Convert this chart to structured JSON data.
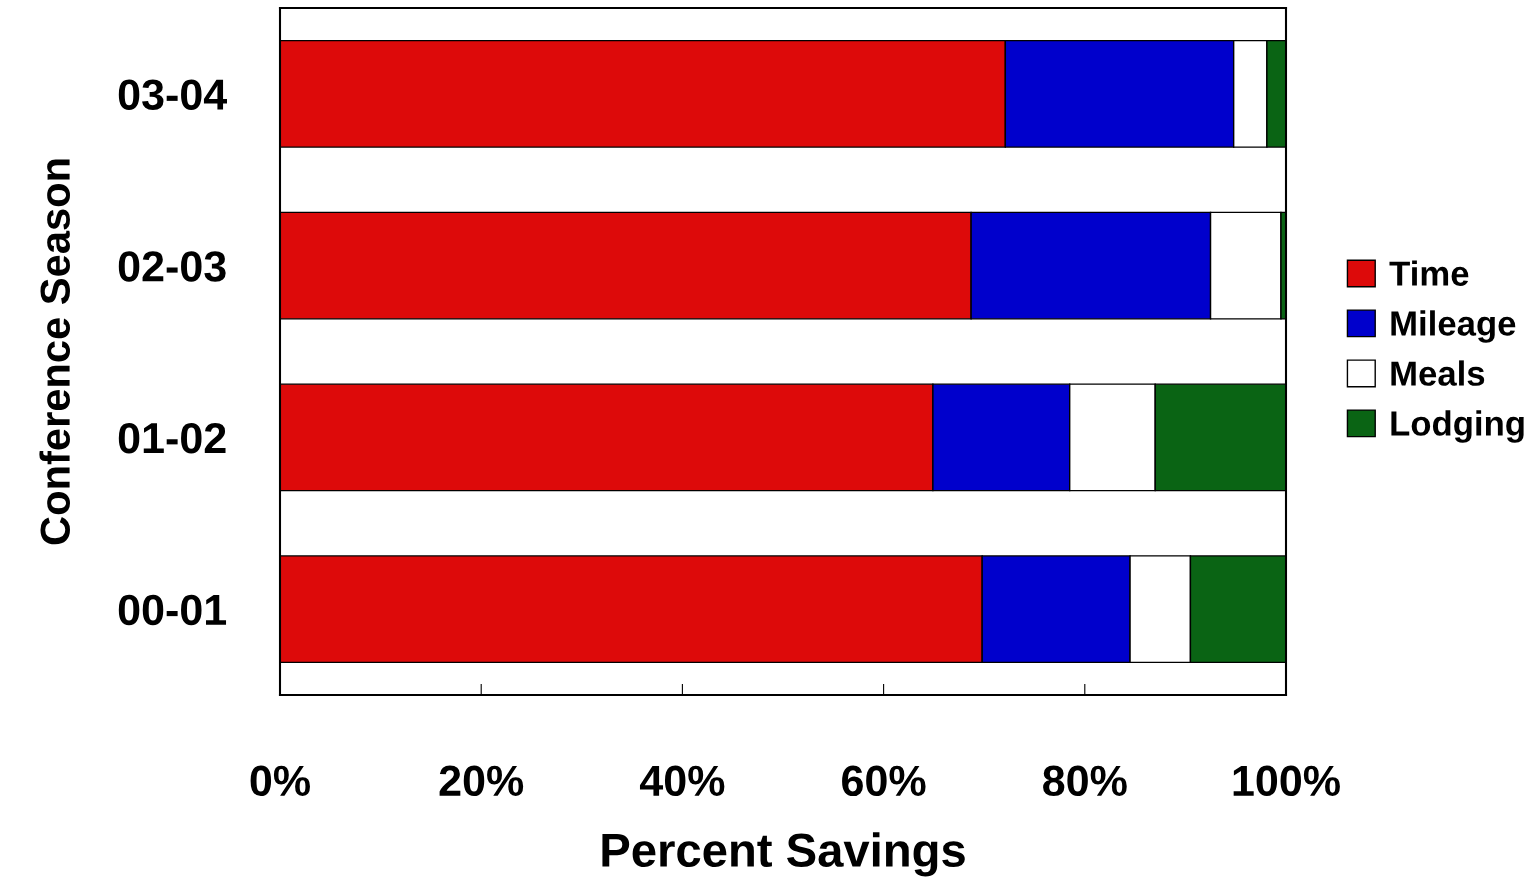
{
  "chart_data": {
    "type": "bar",
    "orientation": "horizontal",
    "stacked": true,
    "xlabel": "Percent Savings",
    "ylabel": "Conference Season",
    "categories": [
      "03-04",
      "02-03",
      "01-02",
      "00-01"
    ],
    "series": [
      {
        "name": "Time",
        "color": "#dd0a0a",
        "values": [
          72.1,
          68.7,
          64.9,
          69.8
        ]
      },
      {
        "name": "Mileage",
        "color": "#0000cc",
        "values": [
          22.7,
          23.8,
          13.6,
          14.7
        ]
      },
      {
        "name": "Meals",
        "color": "#ffffff",
        "values": [
          3.3,
          7.0,
          8.5,
          6.0
        ]
      },
      {
        "name": "Lodging",
        "color": "#0a6414",
        "values": [
          1.9,
          0.5,
          13.0,
          9.5
        ]
      }
    ],
    "xlim": [
      0,
      100
    ],
    "xticks": [
      {
        "value": 0,
        "label": "0%"
      },
      {
        "value": 20,
        "label": "20%"
      },
      {
        "value": 40,
        "label": "40%"
      },
      {
        "value": 60,
        "label": "60%"
      },
      {
        "value": 80,
        "label": "80%"
      },
      {
        "value": 100,
        "label": "100%"
      }
    ],
    "legend": "right",
    "grid": false
  }
}
